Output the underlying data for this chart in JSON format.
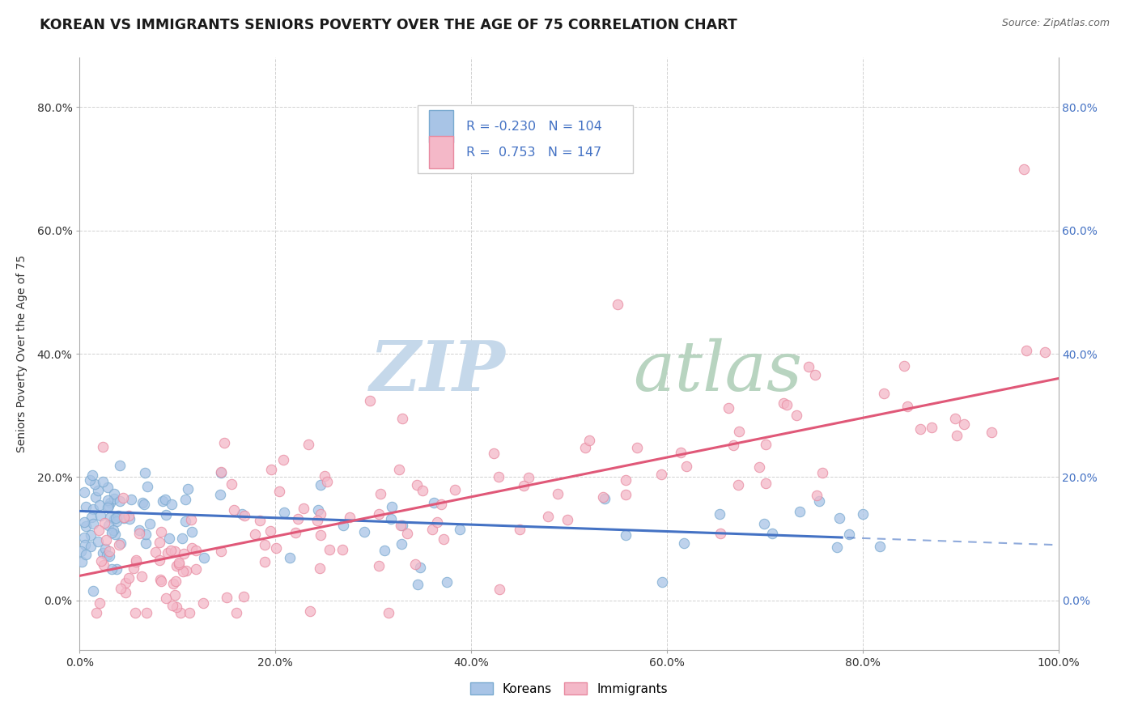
{
  "title": "KOREAN VS IMMIGRANTS SENIORS POVERTY OVER THE AGE OF 75 CORRELATION CHART",
  "source": "Source: ZipAtlas.com",
  "ylabel": "Seniors Poverty Over the Age of 75",
  "xlim": [
    0.0,
    1.0
  ],
  "ylim": [
    -0.08,
    0.88
  ],
  "yticks": [
    0.0,
    0.2,
    0.4,
    0.6,
    0.8
  ],
  "xticks": [
    0.0,
    0.2,
    0.4,
    0.6,
    0.8,
    1.0
  ],
  "korean_color": "#a8c4e6",
  "korean_edge_color": "#7aaad0",
  "immigrant_color": "#f4b8c8",
  "immigrant_edge_color": "#e88aa0",
  "korean_line_color": "#4472c4",
  "korean_line_dash_color": "#9ab8d8",
  "immigrant_line_color": "#e05878",
  "korean_R": -0.23,
  "korean_N": 104,
  "immigrant_R": 0.753,
  "immigrant_N": 147,
  "watermark_zip_color": "#c5d8ea",
  "watermark_atlas_color": "#c0d4c8",
  "legend_R_color": "#4472c4",
  "right_tick_color": "#4472c4",
  "title_fontsize": 12.5,
  "axis_label_fontsize": 10,
  "tick_fontsize": 10,
  "korean_line_intercept": 0.145,
  "korean_line_slope": -0.055,
  "korean_line_solid_end": 0.78,
  "immigrant_line_intercept": 0.04,
  "immigrant_line_slope": 0.32
}
